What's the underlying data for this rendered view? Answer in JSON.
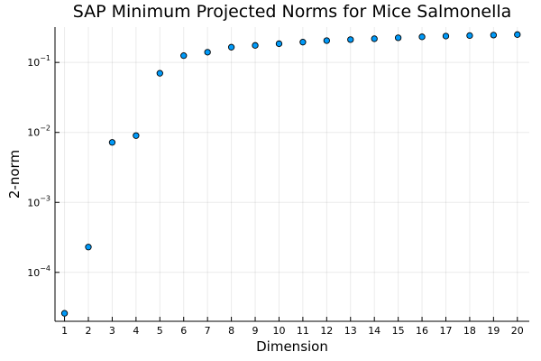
{
  "chart_data": {
    "type": "scatter",
    "title": "SAP Minimum Projected Norms for Mice Salmonella",
    "xlabel": "Dimension",
    "ylabel": "2-norm",
    "yscale": "log",
    "xlim": [
      0.6,
      20.5
    ],
    "ylim": [
      2e-05,
      0.32
    ],
    "x_ticks": [
      "1",
      "2",
      "3",
      "4",
      "5",
      "6",
      "7",
      "8",
      "9",
      "10",
      "11",
      "12",
      "13",
      "14",
      "15",
      "16",
      "17",
      "18",
      "19",
      "20"
    ],
    "y_ticks": [
      {
        "value": 0.0001,
        "base": "10",
        "exp": "−4"
      },
      {
        "value": 0.001,
        "base": "10",
        "exp": "−3"
      },
      {
        "value": 0.01,
        "base": "10",
        "exp": "−2"
      },
      {
        "value": 0.1,
        "base": "10",
        "exp": "−1"
      }
    ],
    "grid": true,
    "legend": "none",
    "marker_color": "#009af9",
    "x": [
      1,
      2,
      3,
      4,
      5,
      6,
      7,
      8,
      9,
      10,
      11,
      12,
      13,
      14,
      15,
      16,
      17,
      18,
      19,
      20
    ],
    "y": [
      2.6e-05,
      0.00023,
      0.0072,
      0.009,
      0.07,
      0.125,
      0.14,
      0.165,
      0.175,
      0.185,
      0.195,
      0.205,
      0.212,
      0.218,
      0.225,
      0.232,
      0.238,
      0.242,
      0.246,
      0.25
    ]
  }
}
